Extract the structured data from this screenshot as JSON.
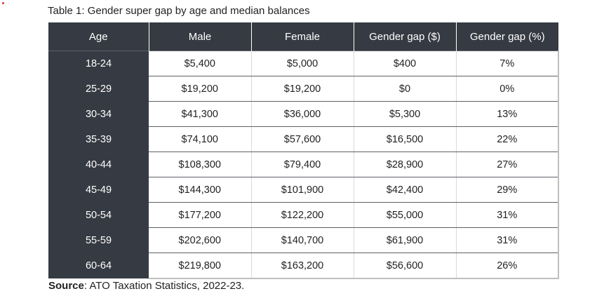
{
  "caption": "Table 1: Gender super gap by age and median balances",
  "columns": [
    "Age",
    "Male",
    "Female",
    "Gender gap ($)",
    "Gender gap (%)"
  ],
  "rows": [
    [
      "18-24",
      "$5,400",
      "$5,000",
      "$400",
      "7%"
    ],
    [
      "25-29",
      "$19,200",
      "$19,200",
      "$0",
      "0%"
    ],
    [
      "30-34",
      "$41,300",
      "$36,000",
      "$5,300",
      "13%"
    ],
    [
      "35-39",
      "$74,100",
      "$57,600",
      "$16,500",
      "22%"
    ],
    [
      "40-44",
      "$108,300",
      "$79,400",
      "$28,900",
      "27%"
    ],
    [
      "45-49",
      "$144,300",
      "$101,900",
      "$42,400",
      "29%"
    ],
    [
      "50-54",
      "$177,200",
      "$122,200",
      "$55,000",
      "31%"
    ],
    [
      "55-59",
      "$202,600",
      "$140,700",
      "$61,900",
      "31%"
    ],
    [
      "60-64",
      "$219,800",
      "$163,200",
      "$56,600",
      "26%"
    ]
  ],
  "source": {
    "label": "Source",
    "text": ": ATO Taxation Statistics, 2022-23."
  }
}
